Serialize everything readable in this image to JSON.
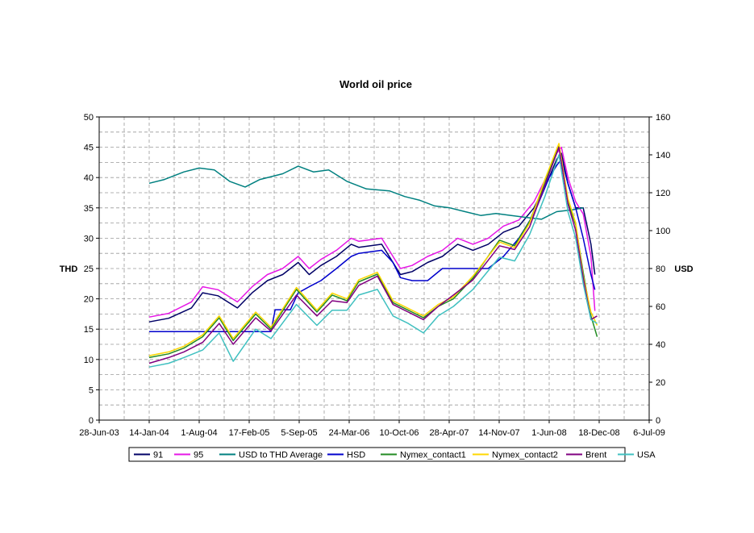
{
  "chart_data": {
    "type": "line",
    "title": "World oil price",
    "ylabel_left": "THD",
    "ylabel_right": "USD",
    "ylim_left": [
      0,
      50
    ],
    "yticks_left": [
      "0",
      "5",
      "10",
      "15",
      "20",
      "25",
      "30",
      "35",
      "40",
      "45",
      "50"
    ],
    "ylim_right": [
      0,
      160
    ],
    "yticks_right": [
      "0",
      "20",
      "40",
      "60",
      "80",
      "100",
      "120",
      "140",
      "160"
    ],
    "x_ticks": [
      "28-Jun-03",
      "14-Jan-04",
      "1-Aug-04",
      "17-Feb-05",
      "5-Sep-05",
      "24-Mar-06",
      "10-Oct-06",
      "28-Apr-07",
      "14-Nov-07",
      "1-Jun-08",
      "18-Dec-08",
      "6-Jul-09"
    ],
    "x_tick_dates": [
      "2003-06-28",
      "2004-01-14",
      "2004-08-01",
      "2005-02-17",
      "2005-09-05",
      "2006-03-24",
      "2006-10-10",
      "2007-04-28",
      "2007-11-14",
      "2008-06-01",
      "2008-12-18",
      "2009-07-06"
    ],
    "xlim": [
      "2003-06-28",
      "2009-07-06"
    ],
    "grid": true,
    "legend_position": "bottom",
    "series": [
      {
        "name": "91",
        "axis": "left",
        "color": "#000066",
        "x": [
          "2004-01-14",
          "2004-04-01",
          "2004-07-01",
          "2004-08-15",
          "2004-10-15",
          "2005-01-01",
          "2005-03-01",
          "2005-05-01",
          "2005-07-01",
          "2005-09-01",
          "2005-10-15",
          "2005-12-01",
          "2006-02-01",
          "2006-04-01",
          "2006-05-01",
          "2006-08-01",
          "2006-09-15",
          "2006-10-15",
          "2006-12-01",
          "2007-02-01",
          "2007-04-01",
          "2007-06-01",
          "2007-08-01",
          "2007-10-01",
          "2007-12-01",
          "2008-02-01",
          "2008-04-01",
          "2008-06-01",
          "2008-07-01",
          "2008-07-20",
          "2008-08-15",
          "2008-09-15",
          "2008-10-15",
          "2008-11-15",
          "2008-12-01"
        ],
        "y": [
          16.2,
          16.8,
          18.5,
          21.0,
          20.5,
          18.5,
          21.0,
          23.0,
          24.0,
          26.0,
          24.0,
          25.5,
          27.0,
          29.0,
          28.5,
          29.0,
          26.0,
          24.0,
          24.5,
          26.0,
          27.0,
          29.0,
          28.0,
          29.0,
          31.0,
          32.0,
          35.0,
          40.0,
          43.0,
          44.0,
          39.0,
          35.0,
          35.0,
          29.0,
          24.0
        ]
      },
      {
        "name": "95",
        "axis": "left",
        "color": "#e617e6",
        "x": [
          "2004-01-14",
          "2004-04-01",
          "2004-07-01",
          "2004-08-15",
          "2004-10-15",
          "2005-01-01",
          "2005-03-01",
          "2005-05-01",
          "2005-07-01",
          "2005-09-01",
          "2005-10-15",
          "2005-12-01",
          "2006-02-01",
          "2006-04-01",
          "2006-05-01",
          "2006-08-01",
          "2006-09-15",
          "2006-10-15",
          "2006-12-01",
          "2007-02-01",
          "2007-04-01",
          "2007-06-01",
          "2007-08-01",
          "2007-10-01",
          "2007-12-01",
          "2008-02-01",
          "2008-04-01",
          "2008-06-01",
          "2008-07-01",
          "2008-07-20",
          "2008-08-15",
          "2008-09-15",
          "2008-10-15",
          "2008-11-15",
          "2008-12-01"
        ],
        "y": [
          17.0,
          17.6,
          19.5,
          22.0,
          21.5,
          19.5,
          22.0,
          24.0,
          25.0,
          27.0,
          25.0,
          26.5,
          28.0,
          30.0,
          29.5,
          30.0,
          27.0,
          25.0,
          25.5,
          27.0,
          28.0,
          30.0,
          29.0,
          30.0,
          32.0,
          33.0,
          36.0,
          41.0,
          44.0,
          45.0,
          40.0,
          36.0,
          34.0,
          27.0,
          18.0
        ]
      },
      {
        "name": "USD to THD Average",
        "axis": "right",
        "color": "#008080",
        "x": [
          "2004-01-14",
          "2004-03-15",
          "2004-06-01",
          "2004-08-01",
          "2004-10-01",
          "2004-12-01",
          "2005-02-01",
          "2005-04-01",
          "2005-07-01",
          "2005-09-01",
          "2005-11-01",
          "2006-01-01",
          "2006-03-15",
          "2006-06-01",
          "2006-09-01",
          "2006-11-01",
          "2007-01-01",
          "2007-03-01",
          "2007-05-01",
          "2007-07-01",
          "2007-09-01",
          "2007-11-01",
          "2008-01-01",
          "2008-03-01",
          "2008-05-01",
          "2008-07-01",
          "2008-09-01",
          "2008-10-15"
        ],
        "y": [
          125,
          127,
          131,
          133,
          132,
          126,
          123,
          127,
          130,
          134,
          131,
          132,
          126,
          122,
          121,
          118,
          116,
          113,
          112,
          110,
          108,
          109,
          108,
          107,
          106,
          110,
          111,
          112
        ]
      },
      {
        "name": "HSD",
        "axis": "left",
        "color": "#0000cc",
        "x": [
          "2004-01-14",
          "2004-12-01",
          "2005-01-01",
          "2005-04-01",
          "2005-05-15",
          "2005-06-01",
          "2005-08-01",
          "2005-09-01",
          "2005-10-15",
          "2005-12-01",
          "2006-02-01",
          "2006-04-01",
          "2006-05-01",
          "2006-08-01",
          "2006-09-15",
          "2006-10-15",
          "2006-12-01",
          "2007-02-01",
          "2007-04-01",
          "2007-06-01",
          "2007-08-01",
          "2007-10-01",
          "2007-12-01",
          "2008-02-01",
          "2008-04-01",
          "2008-06-01",
          "2008-07-01",
          "2008-07-20",
          "2008-08-15",
          "2008-09-15",
          "2008-10-15",
          "2008-11-15",
          "2008-12-01"
        ],
        "y": [
          14.6,
          14.6,
          14.6,
          14.6,
          14.6,
          18.2,
          18.2,
          21.0,
          22.0,
          23.0,
          25.0,
          27.0,
          27.5,
          28.0,
          26.0,
          23.5,
          23.0,
          23.0,
          25.0,
          25.0,
          25.0,
          25.0,
          27.0,
          30.0,
          34.0,
          40.0,
          42.0,
          43.0,
          39.0,
          35.0,
          30.0,
          24.0,
          21.5
        ]
      },
      {
        "name": "Nymex_contact1",
        "axis": "right",
        "color": "#228b22",
        "x": [
          "2004-01-14",
          "2004-04-01",
          "2004-06-01",
          "2004-08-15",
          "2004-10-20",
          "2004-12-15",
          "2005-03-15",
          "2005-05-15",
          "2005-08-25",
          "2005-11-15",
          "2006-01-15",
          "2006-03-15",
          "2006-05-01",
          "2006-07-15",
          "2006-09-15",
          "2006-11-15",
          "2007-01-15",
          "2007-03-15",
          "2007-05-15",
          "2007-08-01",
          "2007-11-15",
          "2008-01-15",
          "2008-03-15",
          "2008-05-15",
          "2008-07-10",
          "2008-08-15",
          "2008-09-15",
          "2008-10-15",
          "2008-11-15",
          "2008-12-10"
        ],
        "y": [
          33,
          35,
          38,
          44,
          54,
          42,
          56,
          48,
          69,
          57,
          66,
          63,
          73,
          77,
          62,
          58,
          54,
          60,
          64,
          75,
          95,
          92,
          105,
          125,
          145,
          115,
          103,
          78,
          55,
          44
        ]
      },
      {
        "name": "Nymex_contact2",
        "axis": "right",
        "color": "#ffd700",
        "x": [
          "2004-01-14",
          "2004-04-01",
          "2004-06-01",
          "2004-08-15",
          "2004-10-20",
          "2004-12-15",
          "2005-03-15",
          "2005-05-15",
          "2005-08-25",
          "2005-11-15",
          "2006-01-15",
          "2006-03-15",
          "2006-05-01",
          "2006-07-15",
          "2006-09-15",
          "2006-11-15",
          "2007-01-15",
          "2007-03-15",
          "2007-05-15",
          "2007-08-01",
          "2007-11-15",
          "2008-01-15",
          "2008-03-15",
          "2008-05-15",
          "2008-07-10",
          "2008-08-15",
          "2008-09-15",
          "2008-10-15",
          "2008-11-15",
          "2008-12-10"
        ],
        "y": [
          34,
          36,
          39,
          45,
          55,
          43,
          57,
          49,
          70,
          58,
          67,
          64,
          74,
          78,
          63,
          59,
          55,
          61,
          65,
          76,
          94,
          91,
          104,
          127,
          146,
          117,
          104,
          76,
          57,
          50
        ]
      },
      {
        "name": "Brent",
        "axis": "right",
        "color": "#800080",
        "x": [
          "2004-01-14",
          "2004-04-01",
          "2004-06-01",
          "2004-08-15",
          "2004-10-20",
          "2004-12-15",
          "2005-03-15",
          "2005-05-15",
          "2005-08-25",
          "2005-11-15",
          "2006-01-15",
          "2006-03-15",
          "2006-05-01",
          "2006-07-15",
          "2006-09-15",
          "2006-11-15",
          "2007-01-15",
          "2007-03-15",
          "2007-05-15",
          "2007-08-01",
          "2007-11-15",
          "2008-01-15",
          "2008-03-15",
          "2008-05-15",
          "2008-07-10",
          "2008-08-15",
          "2008-09-15",
          "2008-10-15",
          "2008-11-15",
          "2008-12-10"
        ],
        "y": [
          30,
          33,
          36,
          41,
          51,
          40,
          54,
          47,
          66,
          55,
          63,
          62,
          71,
          76,
          61,
          57,
          53,
          60,
          66,
          74,
          92,
          90,
          102,
          124,
          144,
          114,
          100,
          75,
          53,
          55
        ]
      },
      {
        "name": "USA",
        "axis": "right",
        "color": "#40c0c0",
        "x": [
          "2004-01-14",
          "2004-04-01",
          "2004-06-01",
          "2004-08-15",
          "2004-10-20",
          "2004-12-15",
          "2005-03-15",
          "2005-05-15",
          "2005-08-25",
          "2005-11-15",
          "2006-01-15",
          "2006-03-15",
          "2006-05-01",
          "2006-07-15",
          "2006-09-15",
          "2006-11-15",
          "2007-01-15",
          "2007-03-15",
          "2007-05-15",
          "2007-08-01",
          "2007-11-15",
          "2008-01-15",
          "2008-03-15",
          "2008-05-15",
          "2008-07-10",
          "2008-08-15",
          "2008-09-15",
          "2008-10-15",
          "2008-11-15",
          "2008-12-10"
        ],
        "y": [
          28,
          30,
          33,
          37,
          46,
          31,
          48,
          43,
          61,
          50,
          58,
          58,
          66,
          69,
          55,
          51,
          46,
          55,
          60,
          69,
          86,
          84,
          98,
          118,
          140,
          110,
          96,
          72,
          53,
          51
        ]
      }
    ]
  }
}
